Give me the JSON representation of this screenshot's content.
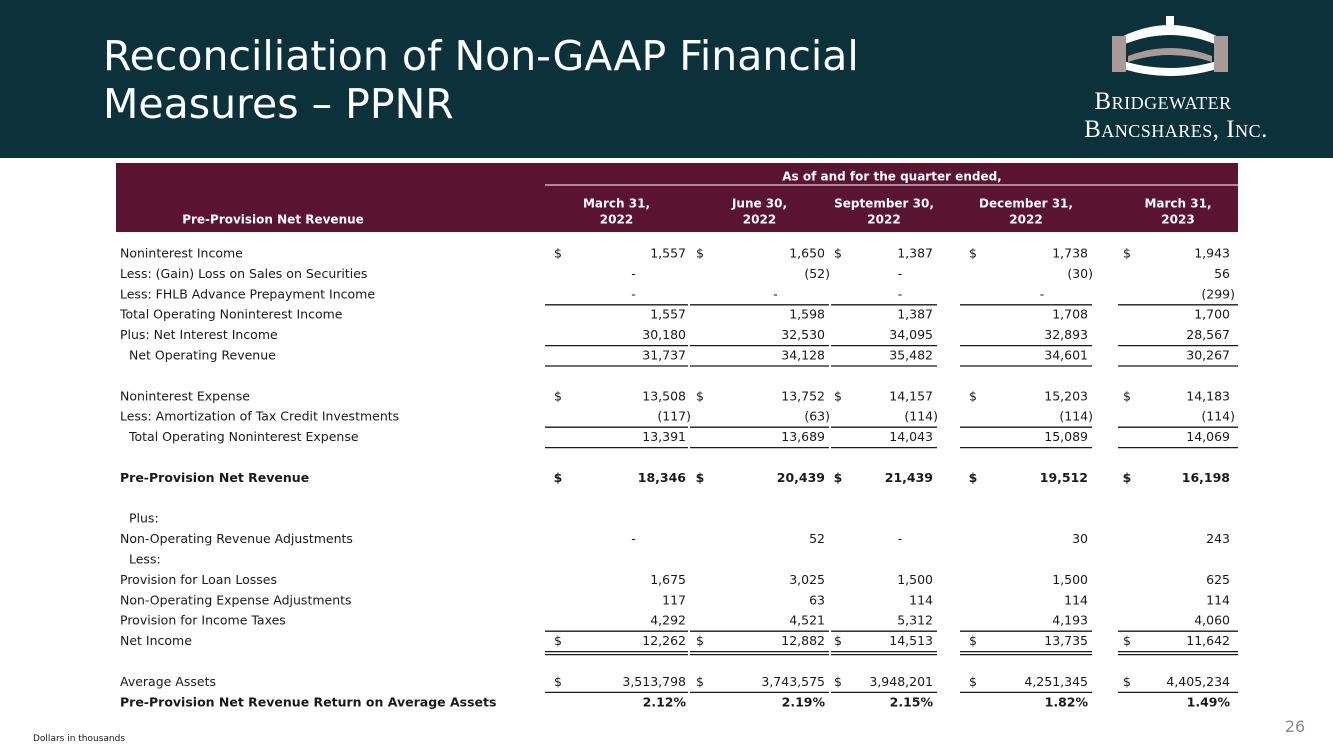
{
  "header": {
    "title_lines": [
      "Reconciliation of Non-GAAP Financial",
      "Measures – PPNR"
    ],
    "logo_lines": [
      "Bridgewater",
      "Bancshares, Inc."
    ]
  },
  "table": {
    "super_header": "As of and for the quarter ended,",
    "row_header": "Pre-Provision Net Revenue",
    "columns": [
      [
        "March 31,",
        "2022"
      ],
      [
        "June 30,",
        "2022"
      ],
      [
        "September 30,",
        "2022"
      ],
      [
        "December 31,",
        "2022"
      ],
      [
        "March 31,",
        "2023"
      ]
    ],
    "sections": [
      [
        {
          "label": "Noninterest Income",
          "currency": "$",
          "cells": [
            "1,557",
            "1,650",
            "1,387",
            "1,738",
            "1,943"
          ]
        },
        {
          "label": "Less: (Gain) Loss on Sales on Securities",
          "cells": [
            "-",
            "(52)",
            "-",
            "(30)",
            "56"
          ]
        },
        {
          "label": "Less: FHLB Advance Prepayment Income",
          "cells": [
            "-",
            "-",
            "-",
            "-",
            "(299)"
          ],
          "rule": "single"
        },
        {
          "label": "Total Operating Noninterest Income",
          "cells": [
            "1,557",
            "1,598",
            "1,387",
            "1,708",
            "1,700"
          ]
        },
        {
          "label": "Plus: Net Interest Income",
          "cells": [
            "30,180",
            "32,530",
            "34,095",
            "32,893",
            "28,567"
          ],
          "rule": "single"
        },
        {
          "label": "Net Operating Revenue",
          "indent": true,
          "cells": [
            "31,737",
            "34,128",
            "35,482",
            "34,601",
            "30,267"
          ],
          "rule": "single"
        }
      ],
      [
        {
          "label": "Noninterest Expense",
          "currency": "$",
          "cells": [
            "13,508",
            "13,752",
            "14,157",
            "15,203",
            "14,183"
          ]
        },
        {
          "label": "Less: Amortization of Tax Credit Investments",
          "cells": [
            "(117)",
            "(63)",
            "(114)",
            "(114)",
            "(114)"
          ],
          "rule": "single"
        },
        {
          "label": "Total Operating Noninterest Expense",
          "indent": true,
          "cells": [
            "13,391",
            "13,689",
            "14,043",
            "15,089",
            "14,069"
          ],
          "rule": "single"
        }
      ],
      [
        {
          "label": "Pre-Provision Net Revenue",
          "bold": true,
          "currency": "$",
          "cells": [
            "18,346",
            "20,439",
            "21,439",
            "19,512",
            "16,198"
          ]
        }
      ],
      [
        {
          "label": "Plus:",
          "indent": true
        },
        {
          "label": "Non-Operating Revenue Adjustments",
          "cells": [
            "-",
            "52",
            "-",
            "30",
            "243"
          ]
        },
        {
          "label": "Less:",
          "indent": true
        },
        {
          "label": "Provision for Loan Losses",
          "cells": [
            "1,675",
            "3,025",
            "1,500",
            "1,500",
            "625"
          ]
        },
        {
          "label": "Non-Operating Expense Adjustments",
          "cells": [
            "117",
            "63",
            "114",
            "114",
            "114"
          ]
        },
        {
          "label": "Provision for Income Taxes",
          "cells": [
            "4,292",
            "4,521",
            "5,312",
            "4,193",
            "4,060"
          ],
          "rule": "single"
        },
        {
          "label": "Net Income",
          "currency": "$",
          "cells": [
            "12,262",
            "12,882",
            "14,513",
            "13,735",
            "11,642"
          ],
          "rule": "double"
        }
      ],
      [
        {
          "label": "Average Assets",
          "currency": "$",
          "cells": [
            "3,513,798",
            "3,743,575",
            "3,948,201",
            "4,251,345",
            "4,405,234"
          ],
          "rule": "single"
        },
        {
          "label": "Pre-Provision Net Revenue Return on Average Assets",
          "bold": true,
          "cells": [
            "2.12%",
            "2.19%",
            "2.15%",
            "1.82%",
            "1.49%"
          ]
        }
      ]
    ]
  },
  "footnote": "Dollars in thousands",
  "page_number": "26"
}
